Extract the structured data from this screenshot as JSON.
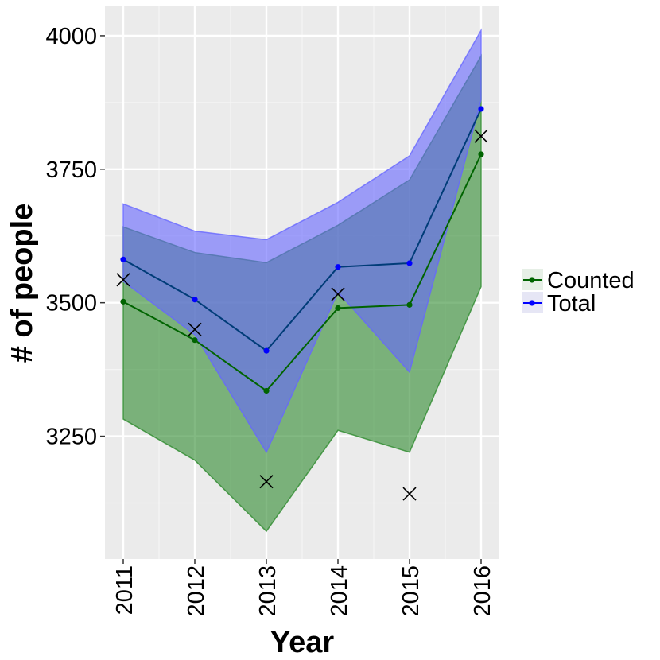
{
  "chart_data": {
    "type": "line",
    "xlabel": "Year",
    "ylabel": "# of people",
    "x": [
      2011,
      2012,
      2013,
      2014,
      2015,
      2016
    ],
    "ylim": [
      3020,
      4055
    ],
    "yticks": [
      3250,
      3500,
      3750,
      4000
    ],
    "grid": true,
    "legend_position": "right",
    "series": [
      {
        "name": "Counted",
        "color": "#006400",
        "values": [
          3502,
          3430,
          3335,
          3490,
          3496,
          3778
        ],
        "ribbon_lower": [
          3282,
          3205,
          3072,
          3261,
          3220,
          3530
        ],
        "ribbon_upper": [
          3642,
          3594,
          3575,
          3645,
          3730,
          3962
        ],
        "ribbon_color": "#2e8b2e"
      },
      {
        "name": "Total",
        "color": "#0000ff",
        "values": [
          3581,
          3506,
          3410,
          3567,
          3574,
          3863
        ],
        "ribbon_lower": [
          3540,
          3440,
          3220,
          3520,
          3370,
          3880
        ],
        "ribbon_upper": [
          3685,
          3634,
          3618,
          3688,
          3775,
          4010
        ],
        "ribbon_color": "#6666ff"
      }
    ],
    "markers": {
      "shape": "x",
      "color": "#000000",
      "values": [
        3543,
        3450,
        3165,
        3516,
        3142,
        3812
      ]
    }
  },
  "legend": {
    "items": [
      {
        "label": "Counted",
        "color": "#006400"
      },
      {
        "label": "Total",
        "color": "#0000ff"
      }
    ]
  }
}
